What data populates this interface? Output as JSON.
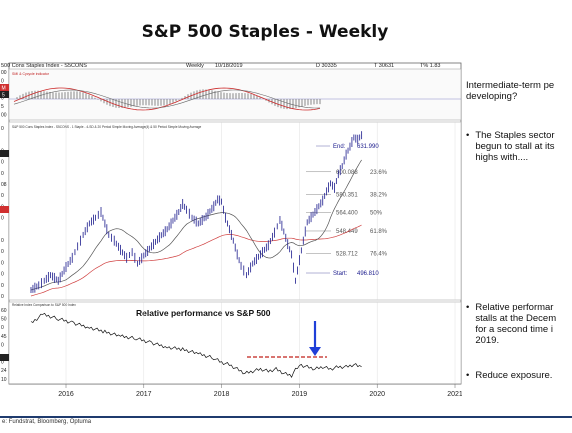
{
  "page": {
    "title": "S&P 500 Staples - Weekly",
    "source": "e: Fundstrat, Bloomberg, Optuma"
  },
  "chart_header": {
    "name": "500 Cons Staples Index - S5CONS",
    "period": "Weekly",
    "date": "10/18/2019",
    "d_value": "D 30335",
    "t_value": "T 30631",
    "pct": "T% 1.83"
  },
  "momentum_panel": {
    "label": "SMI & Cycycle indicator",
    "axis_labels": [
      "00",
      "0",
      "5",
      "0",
      "5",
      "00"
    ],
    "badge_labels": [
      "M",
      "5"
    ]
  },
  "price_panel": {
    "legend": "S&P 500 Cons Staples Index - S5CONS - 1 Staple - 4-SD & 20 Period Simple Moving Average(4) & 50 Period Simple Moving Average",
    "axis_labels": [
      "0",
      "7",
      "0",
      "0",
      "0",
      "08",
      "0",
      "0",
      "0",
      "84",
      "0",
      "0",
      "0",
      "0",
      "0",
      "0"
    ],
    "end_label": "End:",
    "end_value": "631.990",
    "start_label": "Start:",
    "start_value": "496.810",
    "fib_levels": [
      {
        "price": "600.088",
        "pct": "23.6%"
      },
      {
        "price": "580.351",
        "pct": "38.2%"
      },
      {
        "price": "564.400",
        "pct": "50%"
      },
      {
        "price": "548.449",
        "pct": "61.8%"
      },
      {
        "price": "528.712",
        "pct": "76.4%"
      }
    ]
  },
  "relative_panel": {
    "label": "Relative Index Comparison to S&P 500 Index",
    "title": "Relative performance vs S&P 500",
    "axis_labels": [
      "60",
      "50",
      "0",
      "45",
      "0",
      "37",
      "0",
      "24",
      "10"
    ]
  },
  "x_axis": {
    "ticks": [
      "2016",
      "2017",
      "2018",
      "2019",
      "2020",
      "2021"
    ]
  },
  "sidebar": {
    "q_line1": "Intermediate-term pe",
    "q_line2": "developing?",
    "b1_line1": "The Staples sector",
    "b1_line2": "begun to stall at its",
    "b1_line3": "highs with....",
    "b2_line1": "Relative performar",
    "b2_line2": "stalls at the Decem",
    "b2_line3": "for a second time i",
    "b2_line4": "2019.",
    "b3_line1": "Reduce exposure.",
    "bullet": "•"
  },
  "colors": {
    "price_line": "#1a1a8c",
    "ma_short": "#444444",
    "ma_long": "#d04040",
    "resistance": "#c0201a",
    "arrow": "#1f3fd8",
    "footer": "#1f3b6e"
  },
  "chart_data": {
    "type": "line",
    "title": "S&P 500 Staples - Weekly",
    "x_ticks": [
      "2016",
      "2017",
      "2018",
      "2019",
      "2020",
      "2021"
    ],
    "grid": true,
    "series": [
      {
        "name": "S5CONS",
        "x": [
          2015.55,
          2015.65,
          2015.72,
          2015.8,
          2015.9,
          2016.0,
          2016.08,
          2016.15,
          2016.22,
          2016.3,
          2016.38,
          2016.45,
          2016.5,
          2016.55,
          2016.62,
          2016.7,
          2016.78,
          2016.85,
          2016.92,
          2017.0,
          2017.1,
          2017.2,
          2017.3,
          2017.4,
          2017.45,
          2017.5,
          2017.55,
          2017.62,
          2017.7,
          2017.8,
          2017.9,
          2017.95,
          2018.0,
          2018.05,
          2018.1,
          2018.15,
          2018.2,
          2018.25,
          2018.32,
          2018.4,
          2018.5,
          2018.6,
          2018.68,
          2018.75,
          2018.8,
          2018.85,
          2018.9,
          2018.95,
          2019.0,
          2019.05,
          2019.1,
          2019.2,
          2019.3,
          2019.35,
          2019.4,
          2019.45,
          2019.5,
          2019.55,
          2019.6,
          2019.65,
          2019.7,
          2019.75,
          2019.8
        ],
        "values": [
          497,
          501,
          505,
          510,
          505,
          517,
          525,
          535,
          545,
          555,
          560,
          565,
          555,
          545,
          540,
          532,
          525,
          530,
          520,
          527,
          535,
          543,
          550,
          560,
          565,
          572,
          567,
          560,
          555,
          561,
          570,
          576,
          574,
          560,
          550,
          540,
          528,
          518,
          510,
          520,
          528,
          536,
          547,
          558,
          548,
          537,
          528,
          505,
          523,
          540,
          556,
          565,
          575,
          583,
          590,
          586,
          598,
          605,
          615,
          622,
          630,
          628,
          632
        ]
      },
      {
        "name": "Relative vs S&P 500",
        "x": [
          2015.55,
          2015.7,
          2015.9,
          2016.1,
          2016.3,
          2016.5,
          2016.7,
          2016.9,
          2017.1,
          2017.3,
          2017.5,
          2017.7,
          2017.9,
          2018.0,
          2018.1,
          2018.2,
          2018.3,
          2018.4,
          2018.5,
          2018.6,
          2018.7,
          2018.8,
          2018.9,
          2018.95,
          2019.0,
          2019.1,
          2019.2,
          2019.3,
          2019.4,
          2019.5,
          2019.6,
          2019.7,
          2019.8
        ],
        "values": [
          56,
          60,
          58,
          56,
          54,
          52,
          50,
          49,
          47,
          45,
          44,
          42,
          40,
          38,
          37,
          35,
          33,
          34,
          35,
          34,
          35,
          33,
          32,
          35,
          37,
          36,
          35,
          36,
          35,
          36,
          36,
          37,
          36
        ]
      }
    ]
  }
}
